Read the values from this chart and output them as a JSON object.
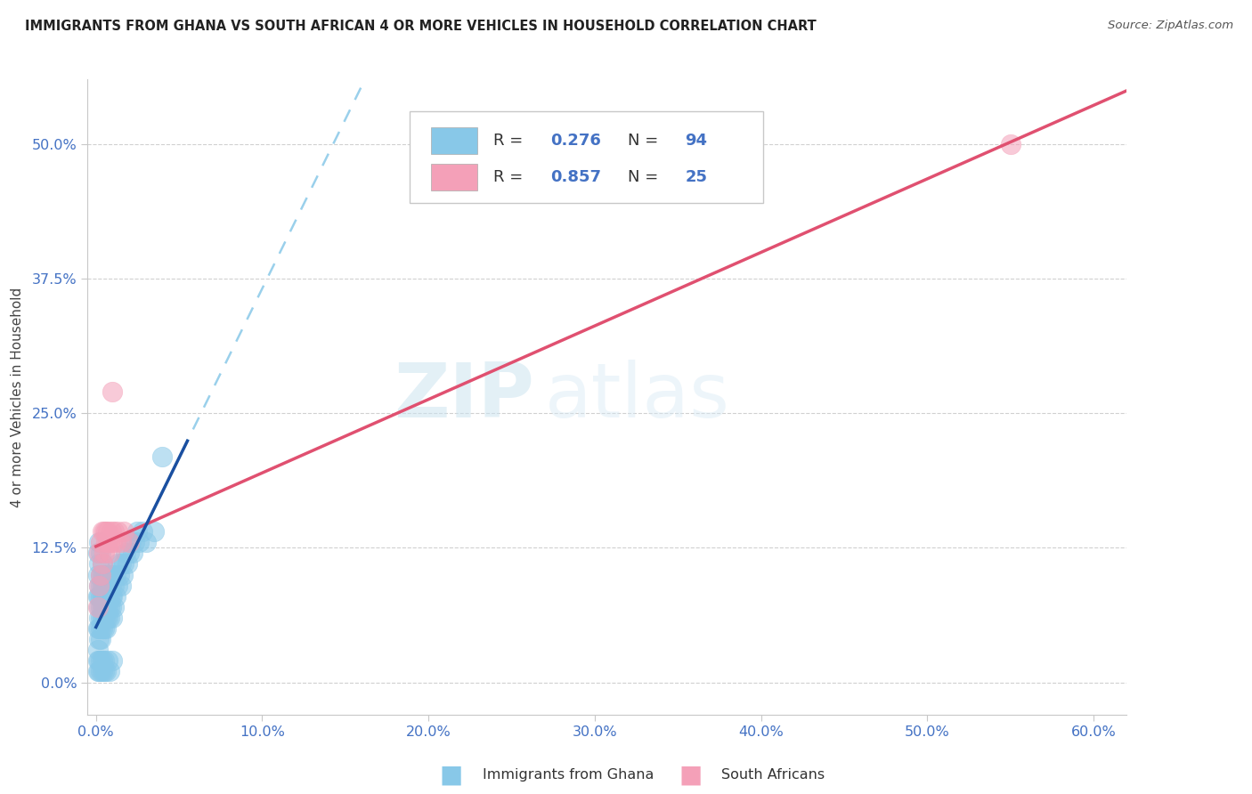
{
  "title": "IMMIGRANTS FROM GHANA VS SOUTH AFRICAN 4 OR MORE VEHICLES IN HOUSEHOLD CORRELATION CHART",
  "source": "Source: ZipAtlas.com",
  "ylabel": "4 or more Vehicles in Household",
  "legend_label1": "Immigrants from Ghana",
  "legend_label2": "South Africans",
  "R1": 0.276,
  "N1": 94,
  "R2": 0.857,
  "N2": 25,
  "color1": "#88c8e8",
  "color2": "#f4a0b8",
  "trend1_solid_color": "#1a4fa0",
  "trend1_dash_color": "#88c8e8",
  "trend2_color": "#e05070",
  "xmin": -0.005,
  "xmax": 0.62,
  "ymin": -0.03,
  "ymax": 0.56,
  "xticks": [
    0.0,
    0.1,
    0.2,
    0.3,
    0.4,
    0.5,
    0.6
  ],
  "xtick_labels": [
    "0.0%",
    "10.0%",
    "20.0%",
    "30.0%",
    "40.0%",
    "50.0%",
    "60.0%"
  ],
  "yticks": [
    0.0,
    0.125,
    0.25,
    0.375,
    0.5
  ],
  "ytick_labels": [
    "0.0%",
    "12.5%",
    "25.0%",
    "37.5%",
    "50.0%"
  ],
  "watermark_zip": "ZIP",
  "watermark_atlas": "atlas",
  "ghana_x": [
    0.001,
    0.001,
    0.001,
    0.001,
    0.001,
    0.002,
    0.002,
    0.002,
    0.002,
    0.002,
    0.002,
    0.002,
    0.002,
    0.003,
    0.003,
    0.003,
    0.003,
    0.003,
    0.003,
    0.003,
    0.003,
    0.004,
    0.004,
    0.004,
    0.004,
    0.004,
    0.004,
    0.004,
    0.005,
    0.005,
    0.005,
    0.005,
    0.005,
    0.005,
    0.005,
    0.006,
    0.006,
    0.006,
    0.006,
    0.006,
    0.006,
    0.007,
    0.007,
    0.007,
    0.007,
    0.007,
    0.008,
    0.008,
    0.008,
    0.008,
    0.008,
    0.009,
    0.009,
    0.009,
    0.01,
    0.01,
    0.01,
    0.011,
    0.011,
    0.012,
    0.012,
    0.013,
    0.013,
    0.014,
    0.015,
    0.015,
    0.016,
    0.017,
    0.018,
    0.019,
    0.02,
    0.021,
    0.022,
    0.023,
    0.025,
    0.026,
    0.028,
    0.03,
    0.035,
    0.04,
    0.001,
    0.001,
    0.002,
    0.002,
    0.003,
    0.003,
    0.004,
    0.004,
    0.005,
    0.005,
    0.006,
    0.007,
    0.008,
    0.01
  ],
  "ghana_y": [
    0.05,
    0.08,
    0.1,
    0.12,
    0.03,
    0.06,
    0.09,
    0.07,
    0.11,
    0.04,
    0.08,
    0.13,
    0.05,
    0.07,
    0.1,
    0.06,
    0.09,
    0.08,
    0.05,
    0.12,
    0.04,
    0.08,
    0.06,
    0.1,
    0.07,
    0.09,
    0.05,
    0.11,
    0.07,
    0.09,
    0.06,
    0.08,
    0.1,
    0.05,
    0.07,
    0.08,
    0.06,
    0.1,
    0.07,
    0.09,
    0.05,
    0.08,
    0.06,
    0.1,
    0.07,
    0.09,
    0.07,
    0.09,
    0.06,
    0.08,
    0.1,
    0.07,
    0.09,
    0.08,
    0.08,
    0.1,
    0.06,
    0.09,
    0.07,
    0.1,
    0.08,
    0.09,
    0.11,
    0.1,
    0.09,
    0.11,
    0.1,
    0.11,
    0.12,
    0.11,
    0.12,
    0.13,
    0.12,
    0.13,
    0.14,
    0.13,
    0.14,
    0.13,
    0.14,
    0.21,
    0.01,
    0.02,
    0.01,
    0.02,
    0.01,
    0.02,
    0.01,
    0.02,
    0.01,
    0.02,
    0.01,
    0.02,
    0.01,
    0.02
  ],
  "sa_x": [
    0.001,
    0.002,
    0.002,
    0.003,
    0.003,
    0.004,
    0.004,
    0.005,
    0.005,
    0.006,
    0.006,
    0.007,
    0.007,
    0.008,
    0.008,
    0.009,
    0.01,
    0.011,
    0.012,
    0.013,
    0.015,
    0.017,
    0.02,
    0.01,
    0.55
  ],
  "sa_y": [
    0.07,
    0.09,
    0.12,
    0.1,
    0.13,
    0.11,
    0.14,
    0.12,
    0.14,
    0.13,
    0.14,
    0.13,
    0.14,
    0.12,
    0.13,
    0.14,
    0.13,
    0.14,
    0.13,
    0.14,
    0.13,
    0.14,
    0.13,
    0.27,
    0.5
  ]
}
